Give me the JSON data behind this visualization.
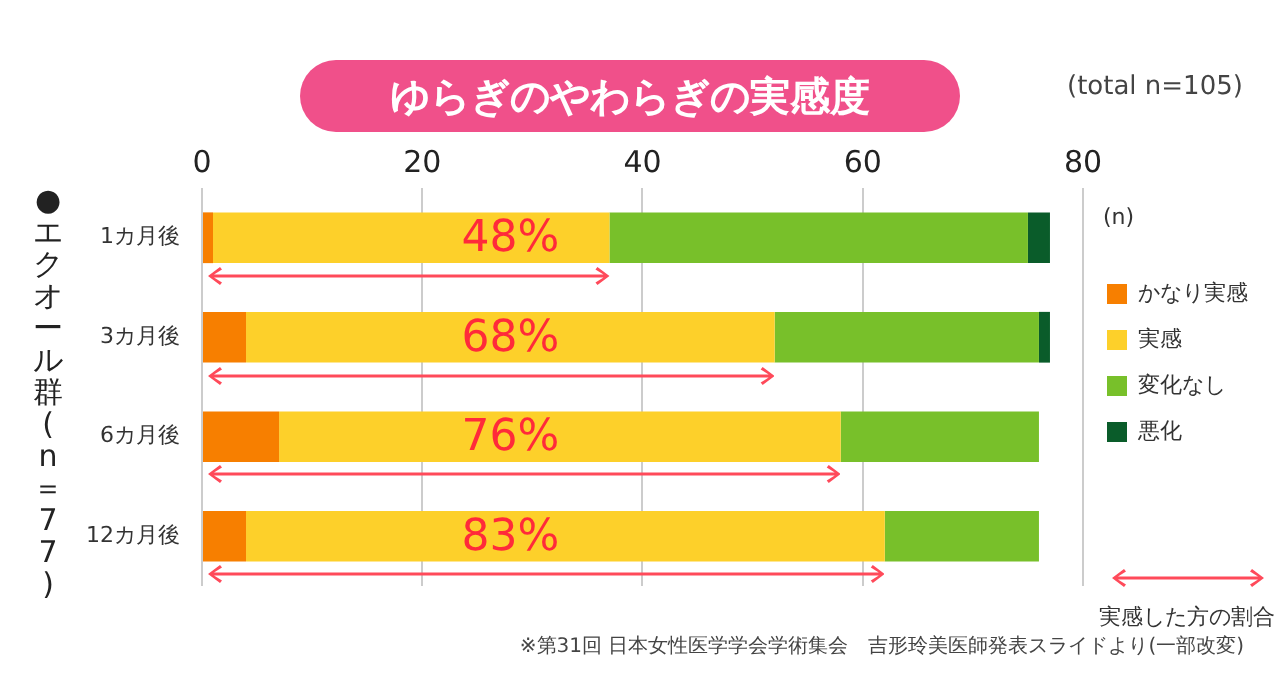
{
  "chart_data": {
    "type": "bar",
    "orientation": "horizontal",
    "stacked": true,
    "title": "ゆらぎのやわらぎの実感度",
    "ylabel": "●エクオール群(n＝77)",
    "xlabel": "(n)",
    "categories": [
      "1カ月後",
      "3カ月後",
      "6カ月後",
      "12カ月後"
    ],
    "series": [
      {
        "name": "かなり実感",
        "color": "#f77f00",
        "values": [
          1,
          4,
          7,
          4
        ]
      },
      {
        "name": "実感",
        "color": "#fdd02a",
        "values": [
          36,
          48,
          51,
          58
        ]
      },
      {
        "name": "変化なし",
        "color": "#78c02a",
        "values": [
          38,
          24,
          18,
          14
        ]
      },
      {
        "name": "悪化",
        "color": "#0a5c2a",
        "values": [
          2,
          1,
          0,
          0
        ]
      }
    ],
    "xlim": [
      0,
      80
    ],
    "xticks": [
      0,
      20,
      40,
      60,
      80
    ],
    "grid": "x",
    "legend": "right",
    "legend_title": "実感した方の割合",
    "annotations": [
      "48%",
      "68%",
      "76%",
      "83%",
      "(total n=105)",
      "※第31回 日本女性医学学会学術集会　吉形玲美医師発表スライドより(一部改変)"
    ]
  }
}
